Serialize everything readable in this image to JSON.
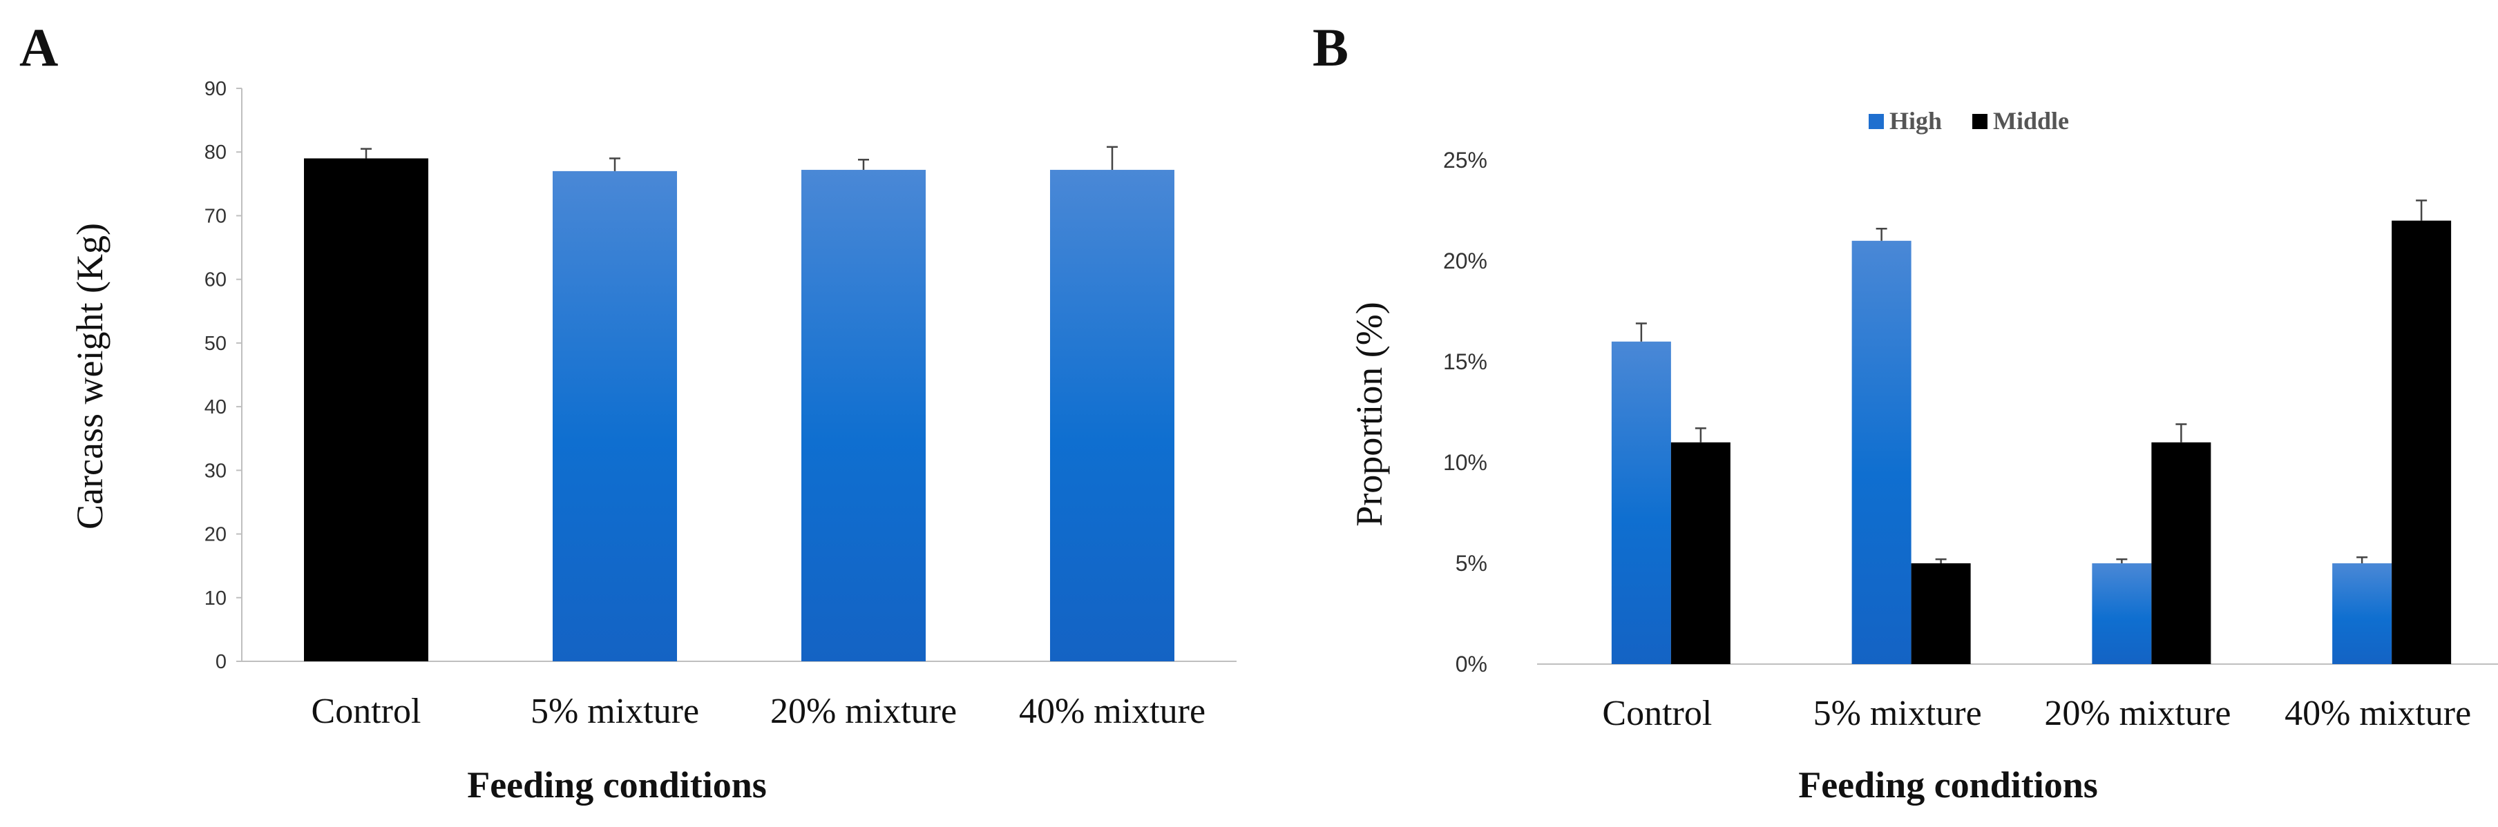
{
  "chart_data": [
    {
      "panel": "A",
      "type": "bar",
      "title": "",
      "xlabel": "Feeding conditions",
      "ylabel": "Carcass weight (Kg)",
      "categories": [
        "Control",
        "5% mixture",
        "20% mixture",
        "40% mixture"
      ],
      "values": [
        79,
        77,
        77.2,
        77.2
      ],
      "errors": [
        1.5,
        2.0,
        1.6,
        3.6
      ],
      "bar_colors": [
        "#000000",
        "#1f6fcf",
        "#1f6fcf",
        "#1f6fcf"
      ],
      "ylim": [
        0,
        90
      ],
      "yticks": [
        0,
        10,
        20,
        30,
        40,
        50,
        60,
        70,
        80,
        90
      ],
      "ytick_labels": [
        "0",
        "10",
        "20",
        "30",
        "40",
        "50",
        "60",
        "70",
        "80",
        "90"
      ]
    },
    {
      "panel": "B",
      "type": "bar",
      "title": "",
      "xlabel": "Feeding conditions",
      "ylabel": "Proportion (%)",
      "categories": [
        "Control",
        "5% mixture",
        "20% mixture",
        "40% mixture"
      ],
      "series": [
        {
          "name": "High",
          "color": "#1f6fcf",
          "values": [
            16,
            21,
            5,
            5
          ],
          "errors": [
            0.9,
            0.6,
            0.2,
            0.3
          ]
        },
        {
          "name": "Middle",
          "color": "#000000",
          "values": [
            11,
            5,
            11,
            22
          ],
          "errors": [
            0.7,
            0.2,
            0.9,
            1.0
          ]
        }
      ],
      "ylim": [
        0,
        25
      ],
      "yticks": [
        0,
        5,
        10,
        15,
        20,
        25
      ],
      "ytick_labels": [
        "0%",
        "5%",
        "10%",
        "15%",
        "20%",
        "25%"
      ],
      "legend_position": "top"
    }
  ]
}
